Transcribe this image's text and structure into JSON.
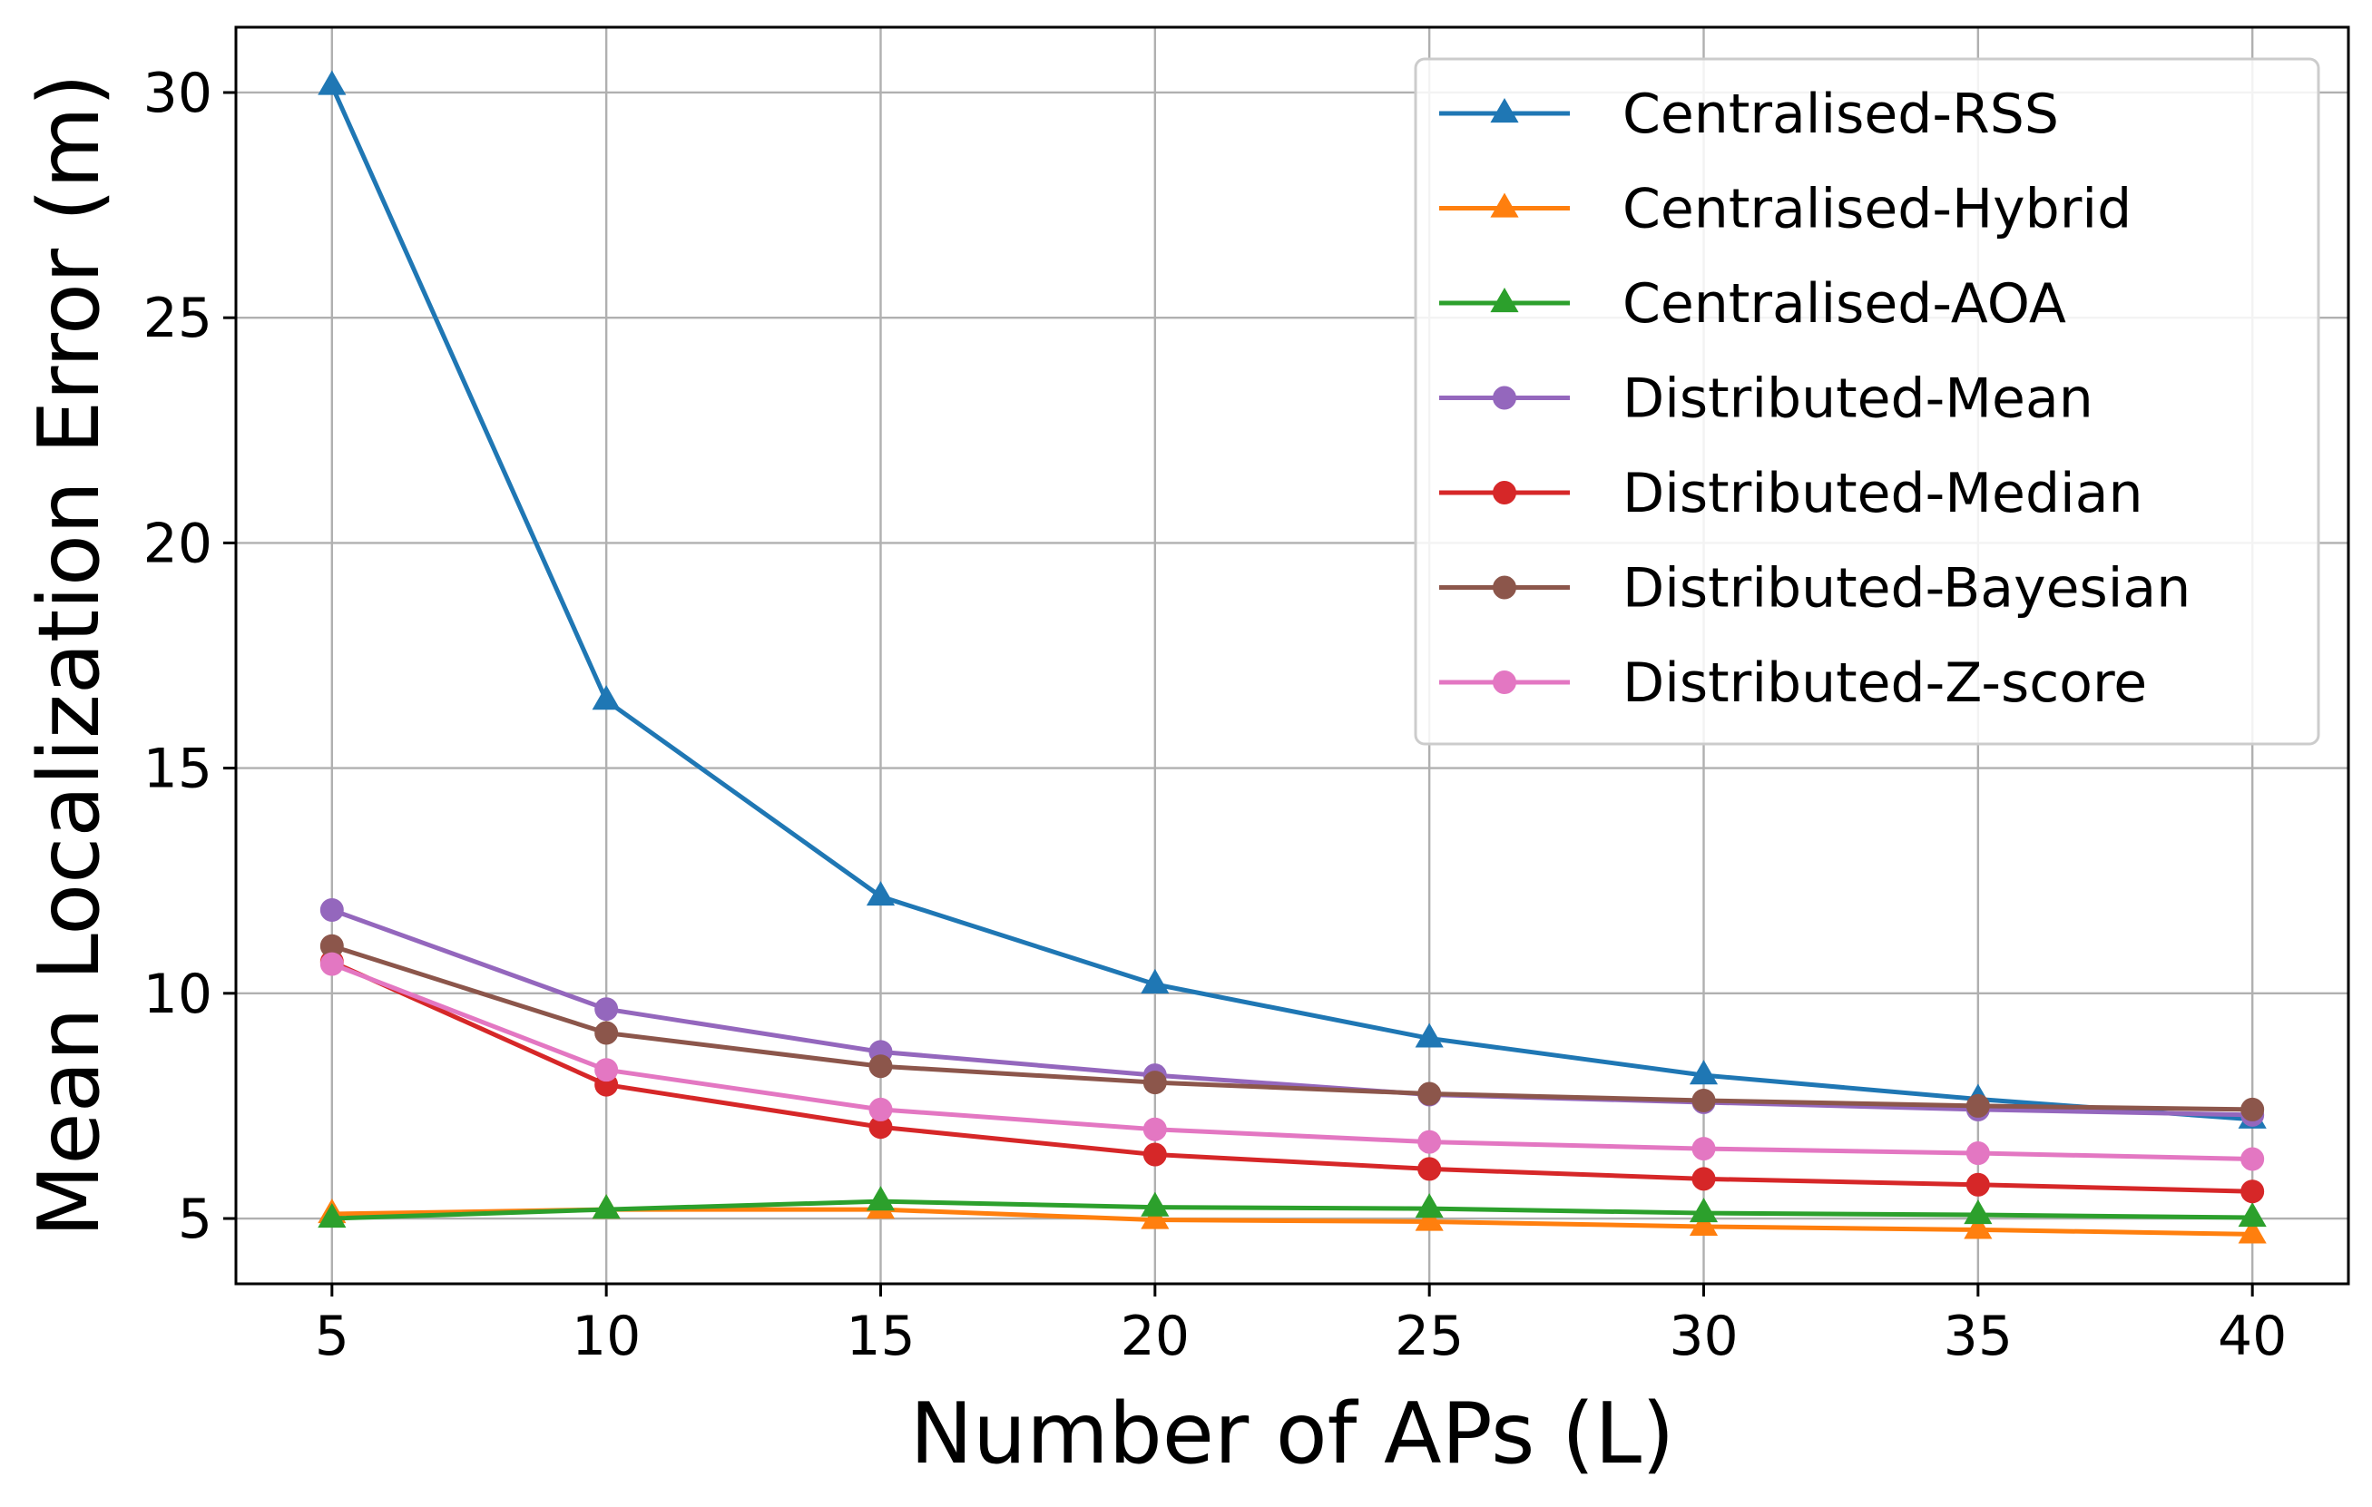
{
  "chart_data": {
    "type": "line",
    "title": "",
    "xlabel": "Number of APs (L)",
    "ylabel": "Mean Localization Error (m)",
    "x": [
      5,
      10,
      15,
      20,
      25,
      30,
      35,
      40
    ],
    "xticks": [
      5,
      10,
      15,
      20,
      25,
      30,
      35,
      40
    ],
    "yticks": [
      5,
      10,
      15,
      20,
      25,
      30
    ],
    "xlim": [
      3.25,
      41.75
    ],
    "ylim": [
      3.55,
      31.45
    ],
    "grid": true,
    "legend_position": "top-right",
    "series": [
      {
        "name": "Centralised-RSS",
        "marker": "triangle",
        "color": "#1f77b4",
        "values": [
          30.15,
          16.5,
          12.15,
          10.2,
          9.0,
          8.18,
          7.65,
          7.2
        ]
      },
      {
        "name": "Centralised-Hybrid",
        "marker": "triangle",
        "color": "#ff7f0e",
        "values": [
          5.1,
          5.2,
          5.2,
          4.97,
          4.93,
          4.82,
          4.75,
          4.65
        ]
      },
      {
        "name": "Centralised-AOA",
        "marker": "triangle",
        "color": "#2ca02c",
        "values": [
          5.0,
          5.2,
          5.38,
          5.25,
          5.22,
          5.12,
          5.08,
          5.02
        ]
      },
      {
        "name": "Distributed-Mean",
        "marker": "circle",
        "color": "#9467bd",
        "values": [
          11.85,
          9.65,
          8.7,
          8.18,
          7.75,
          7.58,
          7.42,
          7.3
        ]
      },
      {
        "name": "Distributed-Median",
        "marker": "circle",
        "color": "#d62728",
        "values": [
          10.7,
          7.97,
          7.03,
          6.42,
          6.1,
          5.88,
          5.75,
          5.6
        ]
      },
      {
        "name": "Distributed-Bayesian",
        "marker": "circle",
        "color": "#8c564b",
        "values": [
          11.05,
          9.12,
          8.38,
          8.02,
          7.77,
          7.62,
          7.5,
          7.42
        ]
      },
      {
        "name": "Distributed-Z-score",
        "marker": "circle",
        "color": "#e377c2",
        "values": [
          10.65,
          8.3,
          7.42,
          6.98,
          6.7,
          6.55,
          6.45,
          6.32
        ]
      }
    ]
  }
}
